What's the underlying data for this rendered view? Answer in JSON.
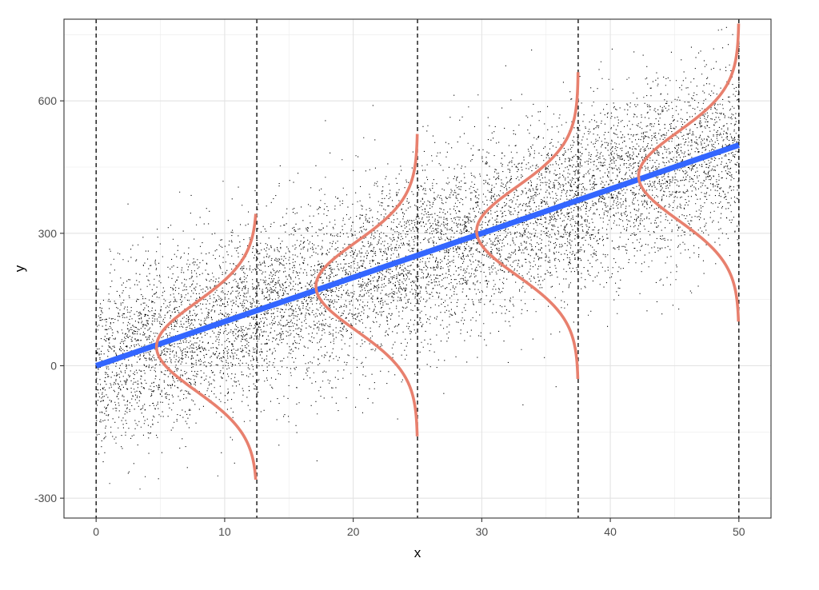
{
  "chart_data": {
    "type": "scatter",
    "xlabel": "x",
    "ylabel": "y",
    "xlim": [
      -2.5,
      52.5
    ],
    "ylim": [
      -345,
      785
    ],
    "x_ticks": [
      0,
      10,
      20,
      30,
      40,
      50
    ],
    "y_ticks": [
      -300,
      0,
      300,
      600
    ],
    "x_tick_labels": [
      "0",
      "10",
      "20",
      "30",
      "40",
      "50"
    ],
    "y_tick_labels": [
      "-300",
      "0",
      "300",
      "600"
    ],
    "grid": true,
    "legend": "none",
    "scatter": {
      "n_points": 9000,
      "x_range": [
        0,
        50
      ],
      "mean_line": {
        "intercept": 0,
        "slope": 10
      },
      "residual_sd": 100,
      "color": "#000000"
    },
    "fit_line": {
      "x": [
        0,
        50
      ],
      "y": [
        0,
        500
      ],
      "color": "#3366ff"
    },
    "vertical_lines": {
      "x": [
        0,
        12.5,
        25,
        37.5,
        50
      ],
      "style": "dashed",
      "color": "#000000"
    },
    "density_curves": {
      "color": "#e8806e",
      "curves": [
        {
          "x_base": 12.5,
          "mean": 43,
          "y_range": [
            -258,
            344
          ],
          "peak_x": 4.7
        },
        {
          "x_base": 25,
          "mean": 180,
          "y_range": [
            -160,
            525
          ],
          "peak_x": 17.1
        },
        {
          "x_base": 37.5,
          "mean": 305,
          "y_range": [
            -30,
            665
          ],
          "peak_x": 29.6
        },
        {
          "x_base": 50,
          "mean": 430,
          "y_range": [
            100,
            775
          ],
          "peak_x": 42.2
        }
      ]
    }
  }
}
